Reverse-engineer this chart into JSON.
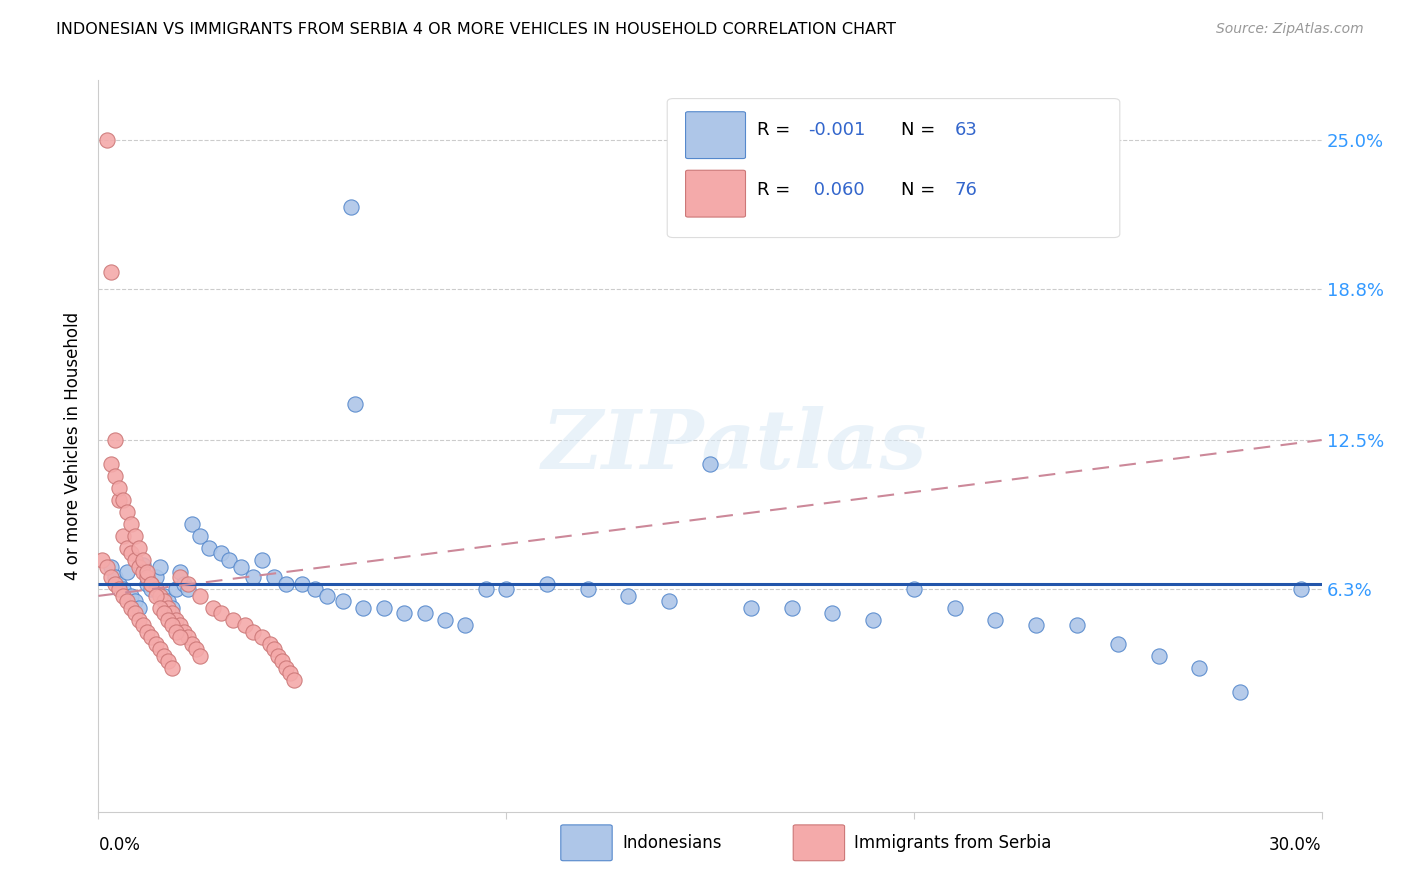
{
  "title": "INDONESIAN VS IMMIGRANTS FROM SERBIA 4 OR MORE VEHICLES IN HOUSEHOLD CORRELATION CHART",
  "source": "Source: ZipAtlas.com",
  "ylabel": "4 or more Vehicles in Household",
  "ytick_labels": [
    "6.3%",
    "12.5%",
    "18.8%",
    "25.0%"
  ],
  "ytick_values": [
    0.063,
    0.125,
    0.188,
    0.25
  ],
  "xmin": 0.0,
  "xmax": 0.3,
  "ymin": -0.03,
  "ymax": 0.275,
  "legend_label1": "Indonesians",
  "legend_label2": "Immigrants from Serbia",
  "r1": "-0.001",
  "n1": "63",
  "r2": "0.060",
  "n2": "76",
  "watermark": "ZIPatlas",
  "blue_face": "#AEC6E8",
  "blue_edge": "#5588CC",
  "pink_face": "#F4AAAA",
  "pink_edge": "#CC7777",
  "blue_line": "#2255AA",
  "pink_line": "#CC8899",
  "blue_text": "#3366CC",
  "grid_color": "#CCCCCC",
  "right_tick_color": "#3399FF"
}
